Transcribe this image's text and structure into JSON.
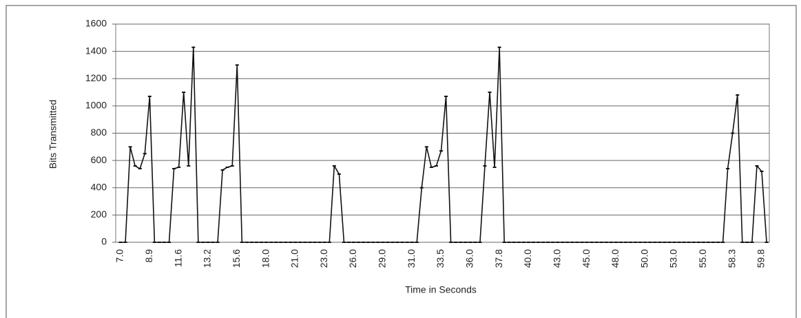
{
  "chart_data": {
    "type": "line",
    "y_label": "Bits Transmitted",
    "x_label": "Time in Seconds",
    "categories": [
      "7.0",
      null,
      null,
      null,
      null,
      null,
      "8.9",
      null,
      null,
      null,
      null,
      null,
      "11.6",
      null,
      null,
      null,
      null,
      null,
      "13.2",
      null,
      null,
      null,
      null,
      null,
      "15.6",
      null,
      null,
      null,
      null,
      null,
      "18.0",
      null,
      null,
      null,
      null,
      null,
      "21.0",
      null,
      null,
      null,
      null,
      null,
      "23.0",
      null,
      null,
      null,
      null,
      null,
      "26.0",
      null,
      null,
      null,
      null,
      null,
      "29.0",
      null,
      null,
      null,
      null,
      null,
      "31.0",
      null,
      null,
      null,
      null,
      null,
      "33.5",
      null,
      null,
      null,
      null,
      null,
      "36.0",
      null,
      null,
      null,
      null,
      null,
      "37.8",
      null,
      null,
      null,
      null,
      null,
      "40.0",
      null,
      null,
      null,
      null,
      null,
      "43.0",
      null,
      null,
      null,
      null,
      null,
      "45.0",
      null,
      null,
      null,
      null,
      null,
      "48.0",
      null,
      null,
      null,
      null,
      null,
      "50.0",
      null,
      null,
      null,
      null,
      null,
      "53.0",
      null,
      null,
      null,
      null,
      null,
      "55.0",
      null,
      null,
      null,
      null,
      null,
      "58.3",
      null,
      null,
      null,
      null,
      null,
      "59.8",
      null
    ],
    "values": [
      0,
      0,
      700,
      560,
      540,
      650,
      1070,
      0,
      0,
      0,
      0,
      540,
      550,
      1100,
      560,
      1430,
      0,
      0,
      0,
      0,
      0,
      530,
      550,
      560,
      1300,
      0,
      0,
      0,
      0,
      0,
      0,
      0,
      0,
      0,
      0,
      0,
      0,
      0,
      0,
      0,
      0,
      0,
      0,
      0,
      560,
      500,
      0,
      0,
      0,
      0,
      0,
      0,
      0,
      0,
      0,
      0,
      0,
      0,
      0,
      0,
      0,
      0,
      400,
      700,
      550,
      560,
      670,
      1070,
      0,
      0,
      0,
      0,
      0,
      0,
      0,
      560,
      1100,
      550,
      1430,
      0,
      0,
      0,
      0,
      0,
      0,
      0,
      0,
      0,
      0,
      0,
      0,
      0,
      0,
      0,
      0,
      0,
      0,
      0,
      0,
      0,
      0,
      0,
      0,
      0,
      0,
      0,
      0,
      0,
      0,
      0,
      0,
      0,
      0,
      0,
      0,
      0,
      0,
      0,
      0,
      0,
      0,
      0,
      0,
      0,
      0,
      540,
      800,
      1080,
      0,
      0,
      0,
      560,
      520,
      0
    ],
    "color": "#111111",
    "ylim": [
      0,
      1600
    ],
    "yticks": [
      0,
      200,
      400,
      600,
      800,
      1000,
      1200,
      1400,
      1600
    ],
    "grid": true
  }
}
